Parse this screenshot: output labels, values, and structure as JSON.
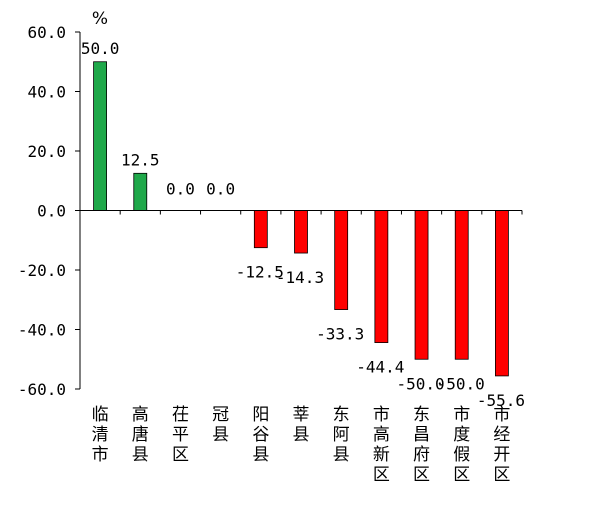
{
  "chart_data": {
    "type": "bar",
    "unit": "%",
    "categories": [
      "临清市",
      "高唐县",
      "茌平区",
      "冠县",
      "阳谷县",
      "莘县",
      "东阿县",
      "市高新区",
      "东昌府区",
      "市度假区",
      "市经开区"
    ],
    "values": [
      50.0,
      12.5,
      0.0,
      0.0,
      -12.5,
      -14.3,
      -33.3,
      -44.4,
      -50.0,
      -50.0,
      -55.6
    ],
    "value_labels": [
      "50.0",
      "12.5",
      "0.0",
      "0.0",
      "-12.5",
      "-14.3",
      "-33.3",
      "-44.4",
      "-50.0",
      "-50.0",
      "-55.6"
    ],
    "y_ticks": [
      "60.0",
      "40.0",
      "20.0",
      "0.0",
      "-20.0",
      "-40.0",
      "-60.0"
    ],
    "ylim": [
      -60,
      60
    ],
    "colors": {
      "positive": "#1fa84a",
      "negative": "#ff0000",
      "axis": "#000000"
    },
    "grid": false,
    "legend": "none"
  }
}
